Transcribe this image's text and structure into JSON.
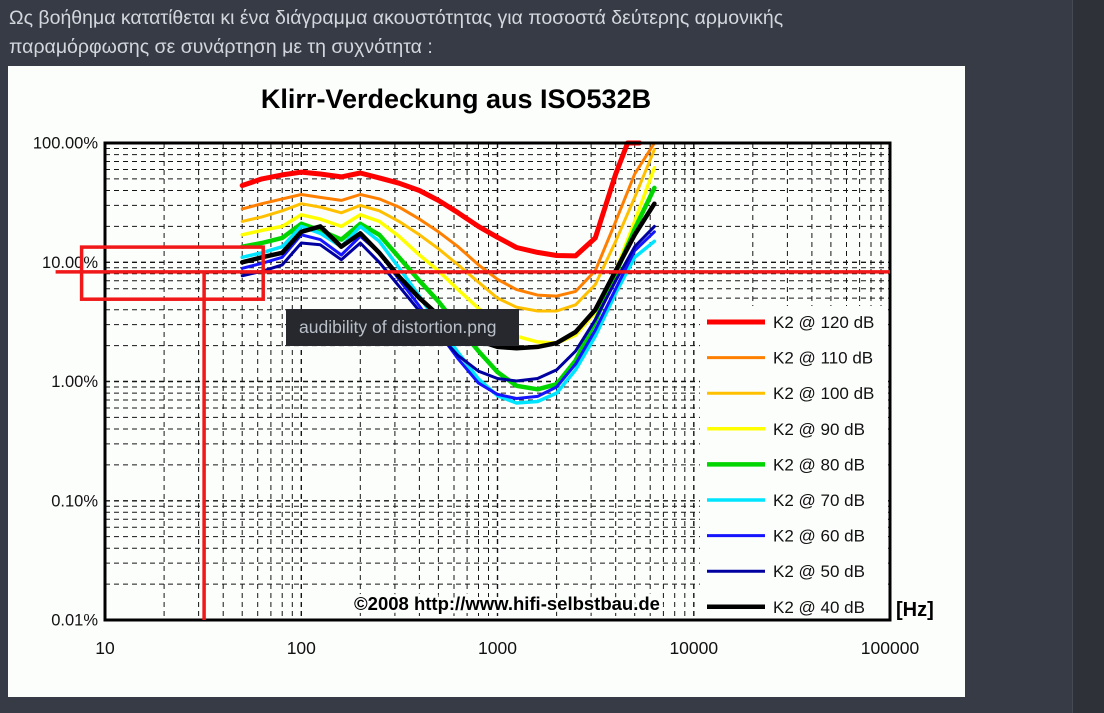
{
  "post": {
    "caption_line1": "Ως βοήθημα κατατίθεται κι ένα διάγραμμα ακουστότητας για ποσοστά δεύτερης αρμονικής",
    "caption_line2": "παραμόρφωσης σε συνάρτηση με τη συχνότητα :"
  },
  "tooltip": {
    "text": "audibility of distortion.png"
  },
  "chart_data": {
    "type": "line",
    "title": "Klirr-Verdeckung aus ISO532B",
    "watermark": "©2008 http://www.hifi-selbstbau.de",
    "x_axis": {
      "unit_label": "[Hz]",
      "scale": "log",
      "range_hz": [
        10,
        100000
      ],
      "ticks": [
        "10",
        "100",
        "1000",
        "10000",
        "100000"
      ],
      "tick_values": [
        10,
        100,
        1000,
        10000,
        100000
      ]
    },
    "y_axis": {
      "scale": "log",
      "range_percent": [
        0.01,
        100
      ],
      "ticks": [
        "100.00%",
        "10.00%",
        "1.00%",
        "0.10%",
        "0.01%"
      ],
      "tick_values": [
        100,
        10,
        1,
        0.1,
        0.01
      ]
    },
    "grid": {
      "style": "dashed",
      "minor_log_steps": [
        2,
        3,
        4,
        5,
        6,
        7,
        8,
        9
      ]
    },
    "legend_position": "right-inside",
    "series": [
      {
        "name": "K2 @ 120 dB",
        "color": "#ff0000",
        "width": 5,
        "x": [
          50,
          63,
          80,
          100,
          125,
          160,
          200,
          250,
          315,
          400,
          500,
          630,
          800,
          1000,
          1250,
          1600,
          2000,
          2500,
          3150,
          4000,
          4600,
          5300
        ],
        "y": [
          44,
          50,
          54,
          57,
          55,
          52,
          56,
          51,
          46,
          40,
          33,
          26,
          20,
          16.2,
          13.3,
          12.1,
          11.4,
          11.3,
          16,
          55,
          100,
          100
        ]
      },
      {
        "name": "K2 @ 110 dB",
        "color": "#ff8000",
        "width": 3,
        "x": [
          50,
          63,
          80,
          100,
          125,
          160,
          200,
          250,
          315,
          400,
          500,
          630,
          800,
          1000,
          1250,
          1600,
          2000,
          2500,
          3150,
          4000,
          5000,
          6300
        ],
        "y": [
          28,
          31,
          34,
          37,
          35,
          33,
          37,
          34,
          29,
          23,
          18,
          13.5,
          9.5,
          7.2,
          5.9,
          5.3,
          5.2,
          5.7,
          8.5,
          22,
          55,
          100
        ]
      },
      {
        "name": "K2 @ 100 dB",
        "color": "#ffc000",
        "width": 3,
        "x": [
          50,
          63,
          80,
          100,
          125,
          160,
          200,
          250,
          315,
          400,
          500,
          630,
          800,
          1000,
          1250,
          1600,
          2000,
          2500,
          3150,
          4000,
          5000,
          6300
        ],
        "y": [
          22,
          24,
          27,
          31,
          29,
          26,
          30,
          27,
          22,
          17,
          13,
          9.5,
          6.8,
          5.0,
          4.2,
          3.9,
          3.9,
          4.4,
          6.5,
          15,
          35,
          88
        ]
      },
      {
        "name": "K2 @ 90 dB",
        "color": "#ffff00",
        "width": 3.5,
        "x": [
          50,
          63,
          80,
          100,
          125,
          160,
          200,
          250,
          315,
          400,
          500,
          630,
          800,
          1000,
          1250,
          1600,
          2000,
          2500,
          3150,
          4000,
          5000,
          6300
        ],
        "y": [
          17,
          18.5,
          20,
          25,
          23,
          20,
          25,
          22,
          16.5,
          11.5,
          8.5,
          5.9,
          4.1,
          3.0,
          2.4,
          2.15,
          2.1,
          2.45,
          3.8,
          8.5,
          22,
          62
        ]
      },
      {
        "name": "K2 @ 80 dB",
        "color": "#00d500",
        "width": 4.5,
        "x": [
          50,
          63,
          80,
          100,
          125,
          160,
          200,
          250,
          315,
          400,
          500,
          630,
          800,
          1000,
          1250,
          1600,
          2000,
          2500,
          3150,
          4000,
          5000,
          6300
        ],
        "y": [
          13.5,
          14.5,
          16,
          21,
          18.5,
          15.5,
          21,
          17,
          11,
          7,
          4.7,
          2.9,
          1.8,
          1.2,
          0.92,
          0.86,
          0.95,
          1.5,
          3.2,
          8,
          19,
          42
        ]
      },
      {
        "name": "K2 @ 70 dB",
        "color": "#00e5ff",
        "width": 3.5,
        "x": [
          50,
          63,
          80,
          100,
          125,
          160,
          200,
          250,
          315,
          400,
          500,
          630,
          800,
          1000,
          1250,
          1600,
          2000,
          2500,
          3150,
          4000,
          5000,
          6300
        ],
        "y": [
          11,
          12,
          13.5,
          20,
          17.5,
          13.5,
          20,
          15,
          9,
          5.2,
          3.0,
          1.75,
          1.05,
          0.76,
          0.66,
          0.68,
          0.8,
          1.25,
          2.4,
          5.5,
          11,
          15
        ]
      },
      {
        "name": "K2 @ 60 dB",
        "color": "#1414ff",
        "width": 3,
        "x": [
          50,
          63,
          80,
          100,
          125,
          160,
          200,
          250,
          315,
          400,
          500,
          630,
          800,
          1000,
          1250,
          1600,
          2000,
          2500,
          3150,
          4000,
          5000,
          6300
        ],
        "y": [
          8.9,
          9.8,
          11,
          17,
          15.5,
          11.5,
          16.5,
          12,
          7.2,
          4.3,
          2.6,
          1.55,
          0.97,
          0.78,
          0.72,
          0.75,
          0.9,
          1.4,
          2.7,
          6,
          12.5,
          18
        ]
      },
      {
        "name": "K2 @ 50 dB",
        "color": "#0000a0",
        "width": 3,
        "x": [
          50,
          63,
          80,
          100,
          125,
          160,
          200,
          250,
          315,
          400,
          500,
          630,
          800,
          1000,
          1250,
          1600,
          2000,
          2500,
          3150,
          4000,
          5000,
          6300
        ],
        "y": [
          7.7,
          8.4,
          9.5,
          14.5,
          14,
          10.5,
          14.5,
          10,
          6.3,
          3.9,
          2.5,
          1.65,
          1.22,
          1.06,
          1.01,
          1.06,
          1.25,
          1.8,
          3.3,
          7,
          13.5,
          20
        ]
      },
      {
        "name": "K2 @ 40 dB",
        "color": "#000000",
        "width": 4.5,
        "x": [
          50,
          63,
          80,
          100,
          125,
          160,
          200,
          250,
          315,
          400,
          500,
          630,
          800,
          1000,
          1250,
          1600,
          2000,
          2500,
          3150,
          4000,
          5000,
          6300
        ],
        "y": [
          10,
          11,
          12,
          18,
          20,
          13.5,
          17.5,
          12,
          7.6,
          5.0,
          3.6,
          2.8,
          2.2,
          1.95,
          1.9,
          1.95,
          2.1,
          2.6,
          4,
          8.5,
          17,
          31
        ]
      }
    ],
    "annotations": {
      "color": "#f01818",
      "hline_percent": 8.3,
      "hline_hz_span": [
        5.6,
        100000
      ],
      "vline_hz": 32,
      "vline_percent_span": [
        8.3,
        0.01
      ],
      "box_hz": [
        7.6,
        64
      ],
      "box_percent": [
        4.9,
        13.4
      ]
    }
  }
}
